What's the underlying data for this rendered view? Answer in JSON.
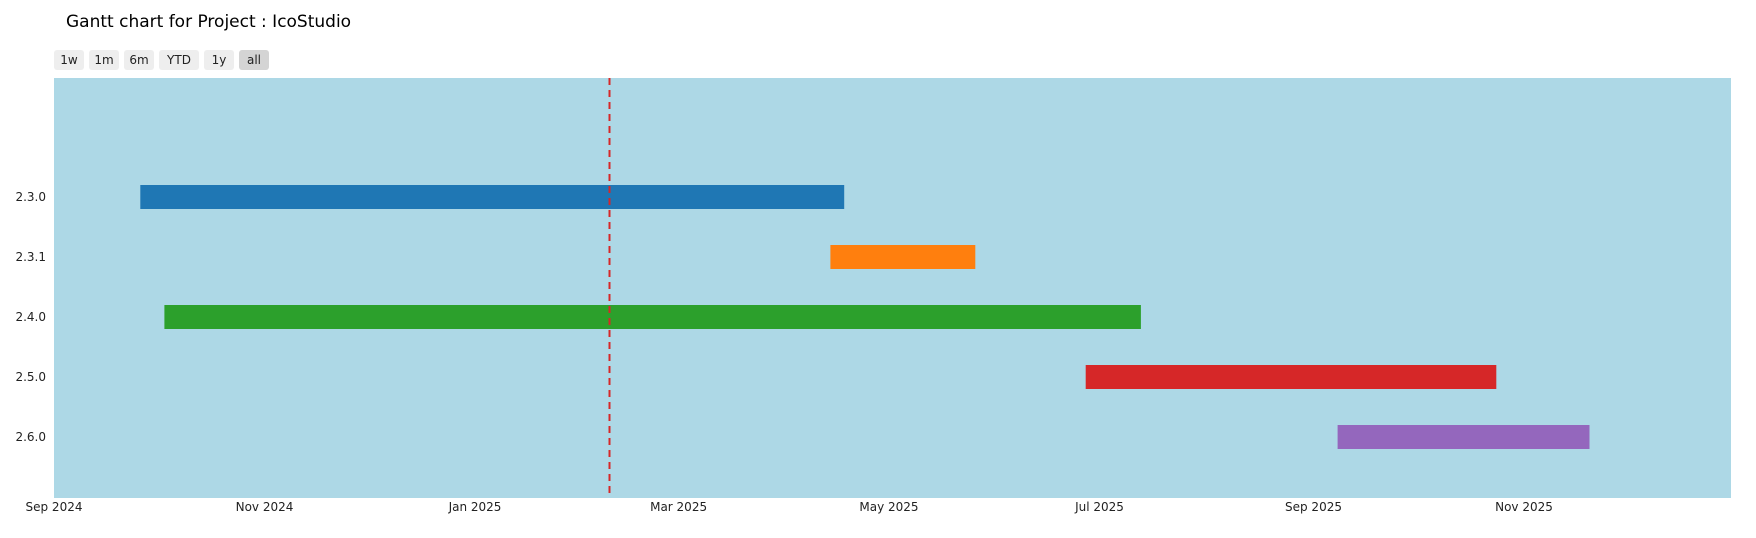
{
  "chart_data": {
    "type": "gantt",
    "title": "Gantt chart for Project : IcoStudio",
    "range_buttons": [
      {
        "label": "1w",
        "active": false
      },
      {
        "label": "1m",
        "active": false
      },
      {
        "label": "6m",
        "active": false
      },
      {
        "label": "YTD",
        "active": false
      },
      {
        "label": "1y",
        "active": false
      },
      {
        "label": "all",
        "active": true
      }
    ],
    "x_axis": {
      "range": [
        "2024-09-01",
        "2025-12-31"
      ],
      "ticks": [
        {
          "date": "2024-09-01",
          "label": "Sep 2024"
        },
        {
          "date": "2024-11-01",
          "label": "Nov 2024"
        },
        {
          "date": "2025-01-01",
          "label": "Jan 2025"
        },
        {
          "date": "2025-03-01",
          "label": "Mar 2025"
        },
        {
          "date": "2025-05-01",
          "label": "May 2025"
        },
        {
          "date": "2025-07-01",
          "label": "Jul 2025"
        },
        {
          "date": "2025-09-01",
          "label": "Sep 2025"
        },
        {
          "date": "2025-11-01",
          "label": "Nov 2025"
        }
      ]
    },
    "tasks": [
      {
        "name": "2.3.0",
        "start": "2024-09-26",
        "end": "2025-04-18",
        "color": "#1f77b4"
      },
      {
        "name": "2.3.1",
        "start": "2025-04-14",
        "end": "2025-05-26",
        "color": "#ff7f0e"
      },
      {
        "name": "2.4.0",
        "start": "2024-10-03",
        "end": "2025-07-13",
        "color": "#2ca02c"
      },
      {
        "name": "2.5.0",
        "start": "2025-06-27",
        "end": "2025-10-24",
        "color": "#d62728"
      },
      {
        "name": "2.6.0",
        "start": "2025-09-08",
        "end": "2025-11-20",
        "color": "#9467bd"
      }
    ],
    "today_marker": {
      "date": "2025-02-09",
      "color": "#d62728",
      "style": "dashed"
    },
    "plot_background": "#add8e6",
    "grid": false,
    "legend": "none"
  }
}
